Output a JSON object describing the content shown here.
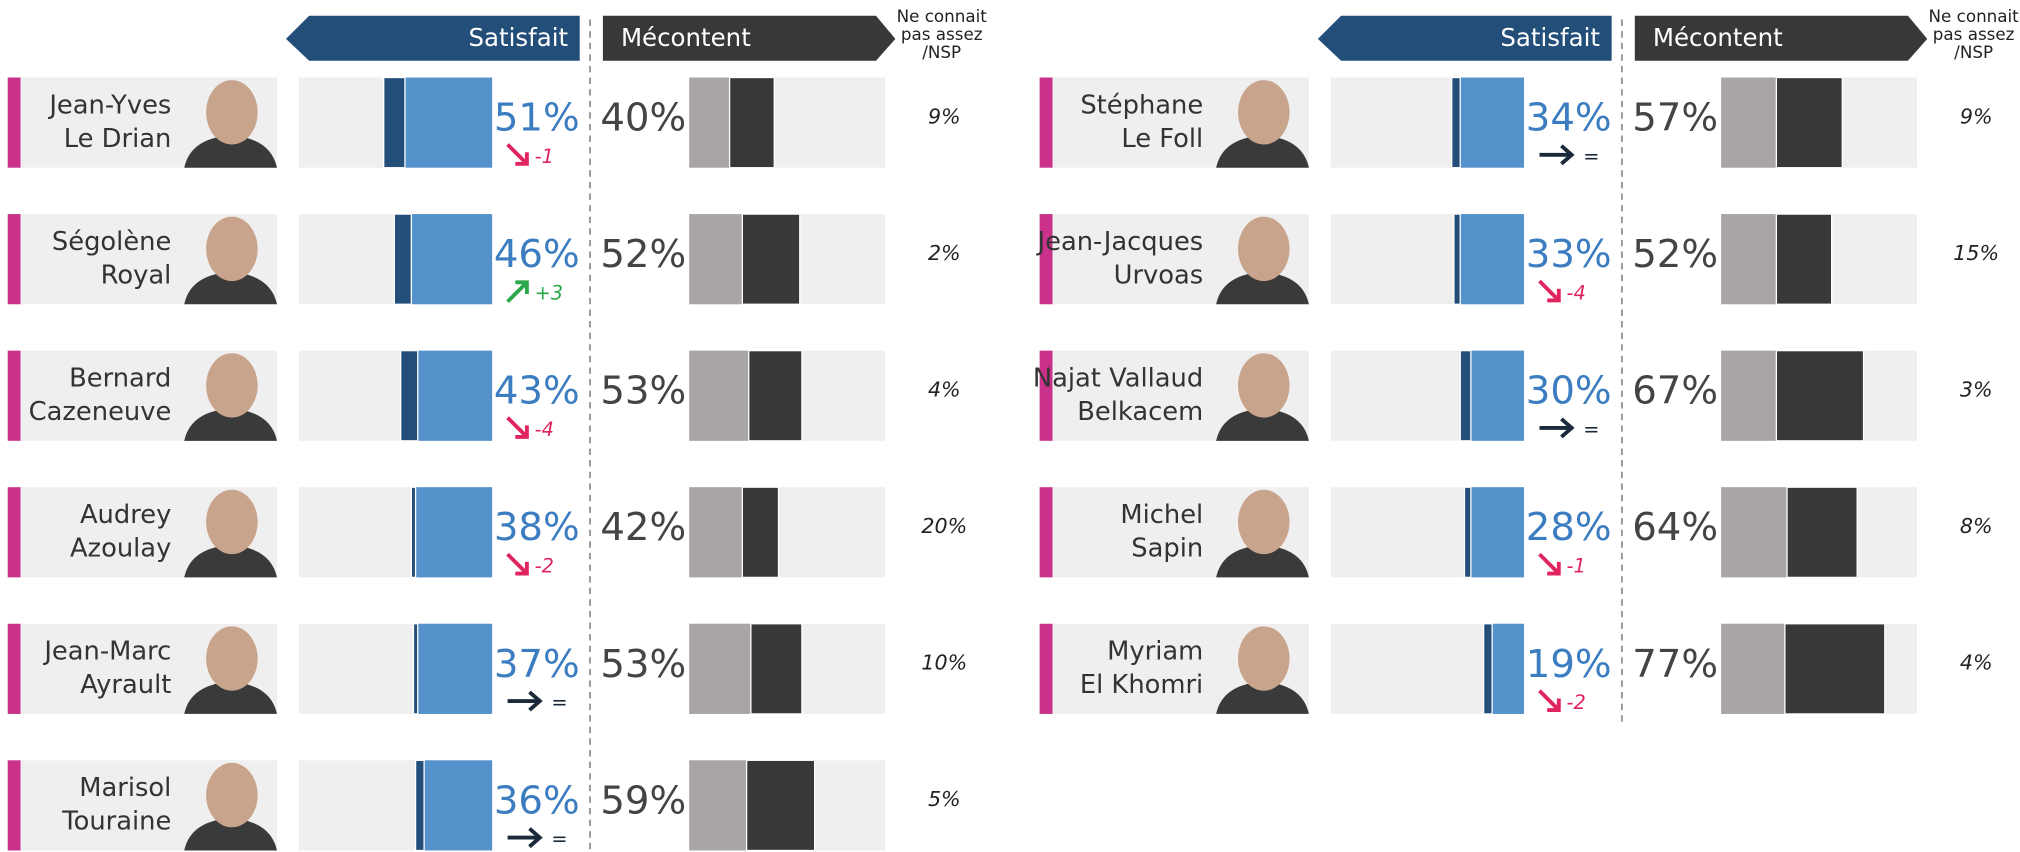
{
  "chart_data": {
    "type": "diverging-bar",
    "panels": [
      {
        "headers": {
          "satisfied": "Satisfait",
          "dissatisfied": "Mécontent",
          "unknown": [
            "Ne connait",
            "pas assez",
            "/NSP"
          ]
        },
        "rows": [
          {
            "name": [
              "Jean-Yves",
              "Le Drian"
            ],
            "satisfied": {
              "value": 51,
              "label": "51%"
            },
            "very_satisfied": 10,
            "change": {
              "value": -1,
              "label": "-1"
            },
            "dissatisfied": {
              "value": 40,
              "label": "40%"
            },
            "very_dissatisfied": 21,
            "unknown": {
              "value": 9,
              "label": "9%"
            }
          },
          {
            "name": [
              "Ségolène",
              "Royal"
            ],
            "satisfied": {
              "value": 46,
              "label": "46%"
            },
            "very_satisfied": 8,
            "change": {
              "value": 3,
              "label": "+3"
            },
            "dissatisfied": {
              "value": 52,
              "label": "52%"
            },
            "very_dissatisfied": 27,
            "unknown": {
              "value": 2,
              "label": "2%"
            }
          },
          {
            "name": [
              "Bernard",
              "Cazeneuve"
            ],
            "satisfied": {
              "value": 43,
              "label": "43%"
            },
            "very_satisfied": 8,
            "change": {
              "value": -4,
              "label": "-4"
            },
            "dissatisfied": {
              "value": 53,
              "label": "53%"
            },
            "very_dissatisfied": 25,
            "unknown": {
              "value": 4,
              "label": "4%"
            }
          },
          {
            "name": [
              "Audrey",
              "Azoulay"
            ],
            "satisfied": {
              "value": 38,
              "label": "38%"
            },
            "very_satisfied": 2,
            "change": {
              "value": -2,
              "label": "-2"
            },
            "dissatisfied": {
              "value": 42,
              "label": "42%"
            },
            "very_dissatisfied": 17,
            "unknown": {
              "value": 20,
              "label": "20%"
            }
          },
          {
            "name": [
              "Jean-Marc",
              "Ayrault"
            ],
            "satisfied": {
              "value": 37,
              "label": "37%"
            },
            "very_satisfied": 2,
            "change": {
              "value": 0,
              "label": "="
            },
            "dissatisfied": {
              "value": 53,
              "label": "53%"
            },
            "very_dissatisfied": 24,
            "unknown": {
              "value": 10,
              "label": "10%"
            }
          },
          {
            "name": [
              "Marisol",
              "Touraine"
            ],
            "satisfied": {
              "value": 36,
              "label": "36%"
            },
            "very_satisfied": 4,
            "change": {
              "value": 0,
              "label": "="
            },
            "dissatisfied": {
              "value": 59,
              "label": "59%"
            },
            "very_dissatisfied": 32,
            "unknown": {
              "value": 5,
              "label": "5%"
            }
          }
        ]
      },
      {
        "headers": {
          "satisfied": "Satisfait",
          "dissatisfied": "Mécontent",
          "unknown": [
            "Ne connait",
            "pas assez",
            "/NSP"
          ]
        },
        "rows": [
          {
            "name": [
              "Stéphane",
              "Le Foll"
            ],
            "satisfied": {
              "value": 34,
              "label": "34%"
            },
            "very_satisfied": 4,
            "change": {
              "value": 0,
              "label": "="
            },
            "dissatisfied": {
              "value": 57,
              "label": "57%"
            },
            "very_dissatisfied": 31,
            "unknown": {
              "value": 9,
              "label": "9%"
            }
          },
          {
            "name": [
              "Jean-Jacques",
              "Urvoas"
            ],
            "satisfied": {
              "value": 33,
              "label": "33%"
            },
            "very_satisfied": 3,
            "change": {
              "value": -4,
              "label": "-4"
            },
            "dissatisfied": {
              "value": 52,
              "label": "52%"
            },
            "very_dissatisfied": 26,
            "unknown": {
              "value": 15,
              "label": "15%"
            }
          },
          {
            "name": [
              "Najat Vallaud",
              "Belkacem"
            ],
            "satisfied": {
              "value": 30,
              "label": "30%"
            },
            "very_satisfied": 5,
            "change": {
              "value": 0,
              "label": "="
            },
            "dissatisfied": {
              "value": 67,
              "label": "67%"
            },
            "very_dissatisfied": 41,
            "unknown": {
              "value": 3,
              "label": "3%"
            }
          },
          {
            "name": [
              "Michel",
              "Sapin"
            ],
            "satisfied": {
              "value": 28,
              "label": "28%"
            },
            "very_satisfied": 3,
            "change": {
              "value": -1,
              "label": "-1"
            },
            "dissatisfied": {
              "value": 64,
              "label": "64%"
            },
            "very_dissatisfied": 33,
            "unknown": {
              "value": 8,
              "label": "8%"
            }
          },
          {
            "name": [
              "Myriam",
              "El Khomri"
            ],
            "satisfied": {
              "value": 19,
              "label": "19%"
            },
            "very_satisfied": 4,
            "change": {
              "value": -2,
              "label": "-2"
            },
            "dissatisfied": {
              "value": 77,
              "label": "77%"
            },
            "very_dissatisfied": 47,
            "unknown": {
              "value": 4,
              "label": "4%"
            }
          }
        ]
      }
    ]
  }
}
